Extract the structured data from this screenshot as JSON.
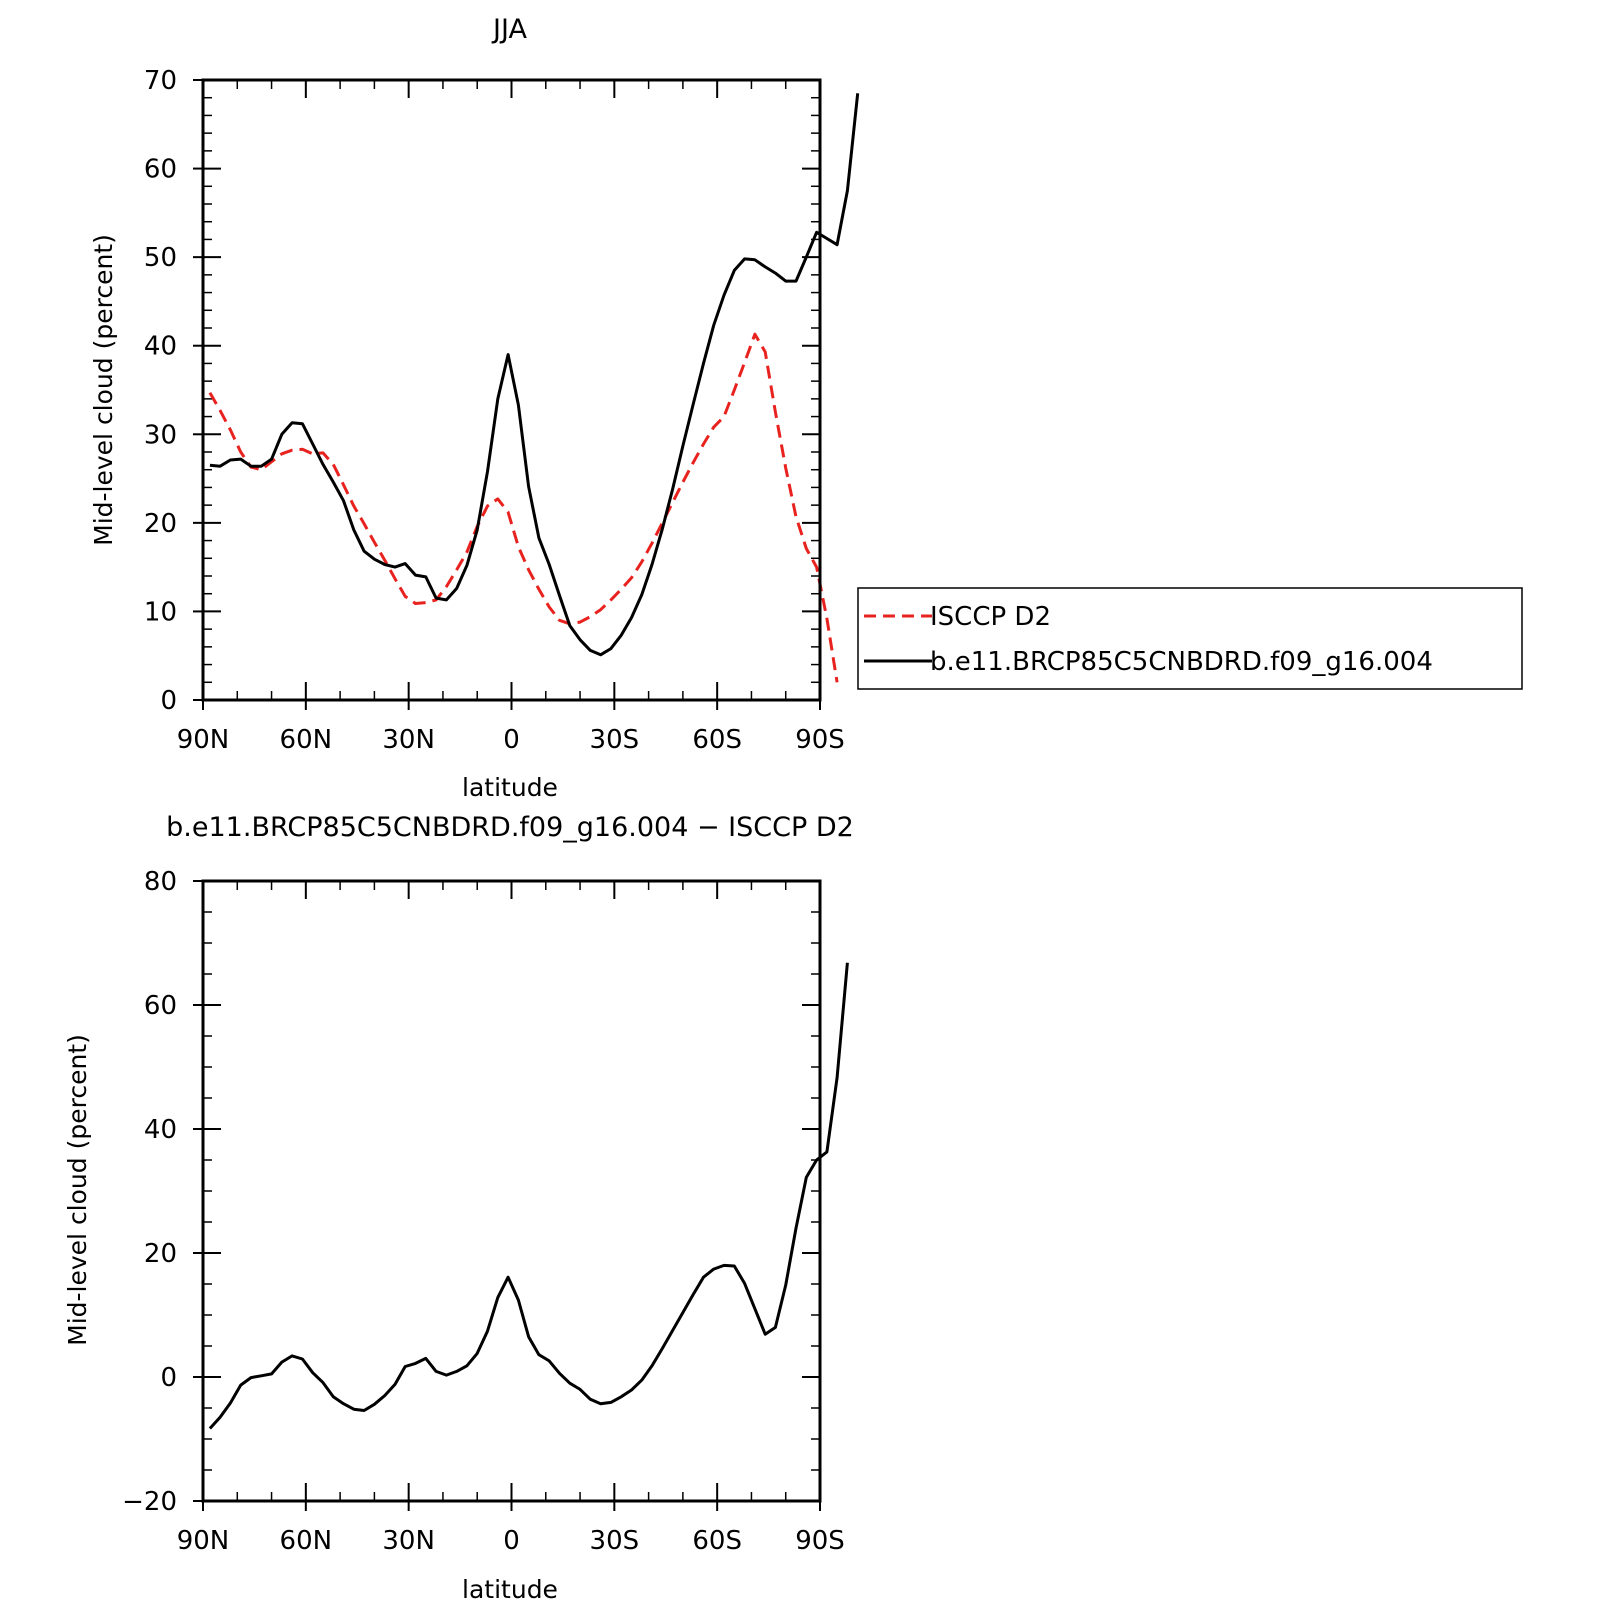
{
  "chart_data": [
    {
      "type": "line",
      "title": "JJA",
      "xlabel": "latitude",
      "ylabel": "Mid-level cloud (percent)",
      "xlim": [
        90,
        -90
      ],
      "ylim": [
        0,
        70
      ],
      "x_ticks": [
        90,
        60,
        30,
        0,
        -30,
        -60,
        -90
      ],
      "x_tick_labels": [
        "90N",
        "60N",
        "30N",
        "0",
        "30S",
        "60S",
        "90S"
      ],
      "y_ticks": [
        0,
        10,
        20,
        30,
        40,
        50,
        60,
        70
      ],
      "y_tick_labels": [
        "0",
        "10",
        "20",
        "30",
        "40",
        "50",
        "60",
        "70"
      ],
      "legend_position": "right",
      "series": [
        {
          "name": "ISCCP D2",
          "color": "#e8231f",
          "style": "dashed",
          "points": [
            [
              88,
              34.7
            ],
            [
              85,
              32.7
            ],
            [
              82,
              30.5
            ],
            [
              79,
              28.0
            ],
            [
              76,
              26.3
            ],
            [
              73,
              26.0
            ],
            [
              70,
              26.9
            ],
            [
              67,
              27.8
            ],
            [
              64,
              28.2
            ],
            [
              61,
              28.3
            ],
            [
              58,
              27.8
            ],
            [
              55,
              27.9
            ],
            [
              52,
              26.6
            ],
            [
              49,
              24.3
            ],
            [
              46,
              21.9
            ],
            [
              43,
              19.9
            ],
            [
              40,
              17.8
            ],
            [
              37,
              15.8
            ],
            [
              34,
              13.7
            ],
            [
              31,
              11.7
            ],
            [
              28,
              10.9
            ],
            [
              25,
              11.0
            ],
            [
              22,
              11.3
            ],
            [
              19,
              12.8
            ],
            [
              16,
              14.7
            ],
            [
              13,
              16.7
            ],
            [
              10,
              19.6
            ],
            [
              7,
              21.9
            ],
            [
              4,
              22.7
            ],
            [
              1,
              21.2
            ],
            [
              -2,
              17.3
            ],
            [
              -5,
              14.7
            ],
            [
              -8,
              12.5
            ],
            [
              -11,
              10.5
            ],
            [
              -14,
              9.0
            ],
            [
              -17,
              8.6
            ],
            [
              -20,
              8.8
            ],
            [
              -23,
              9.4
            ],
            [
              -26,
              10.2
            ],
            [
              -29,
              11.3
            ],
            [
              -32,
              12.5
            ],
            [
              -35,
              13.8
            ],
            [
              -38,
              15.6
            ],
            [
              -41,
              17.7
            ],
            [
              -44,
              20.0
            ],
            [
              -47,
              22.3
            ],
            [
              -50,
              24.6
            ],
            [
              -53,
              26.8
            ],
            [
              -56,
              28.9
            ],
            [
              -59,
              30.8
            ],
            [
              -62,
              32.0
            ],
            [
              -65,
              35.0
            ],
            [
              -68,
              38.1
            ],
            [
              -71,
              41.3
            ],
            [
              -74,
              39.3
            ],
            [
              -77,
              32.5
            ],
            [
              -80,
              26.2
            ],
            [
              -83,
              20.7
            ],
            [
              -86,
              17.1
            ],
            [
              -89,
              15.0
            ],
            [
              -92,
              9.2
            ],
            [
              -95,
              2.0
            ]
          ]
        },
        {
          "name": "b.e11.BRCP85C5CNBDRD.f09_g16.004",
          "color": "#000000",
          "style": "solid",
          "points": [
            [
              88,
              26.5
            ],
            [
              85,
              26.4
            ],
            [
              82,
              27.1
            ],
            [
              79,
              27.2
            ],
            [
              76,
              26.4
            ],
            [
              73,
              26.4
            ],
            [
              70,
              27.2
            ],
            [
              67,
              30.0
            ],
            [
              64,
              31.3
            ],
            [
              61,
              31.2
            ],
            [
              58,
              28.9
            ],
            [
              55,
              26.6
            ],
            [
              52,
              24.6
            ],
            [
              49,
              22.5
            ],
            [
              46,
              19.2
            ],
            [
              43,
              16.8
            ],
            [
              40,
              15.9
            ],
            [
              37,
              15.3
            ],
            [
              34,
              15.0
            ],
            [
              31,
              15.4
            ],
            [
              28,
              14.1
            ],
            [
              25,
              13.9
            ],
            [
              22,
              11.5
            ],
            [
              19,
              11.3
            ],
            [
              16,
              12.6
            ],
            [
              13,
              15.2
            ],
            [
              10,
              19.2
            ],
            [
              7,
              25.8
            ],
            [
              4,
              34.0
            ],
            [
              1,
              39.0
            ],
            [
              -2,
              33.3
            ],
            [
              -5,
              24.1
            ],
            [
              -8,
              18.3
            ],
            [
              -11,
              15.3
            ],
            [
              -14,
              11.8
            ],
            [
              -17,
              8.4
            ],
            [
              -20,
              6.8
            ],
            [
              -23,
              5.6
            ],
            [
              -26,
              5.1
            ],
            [
              -29,
              5.8
            ],
            [
              -32,
              7.3
            ],
            [
              -35,
              9.3
            ],
            [
              -38,
              11.9
            ],
            [
              -41,
              15.3
            ],
            [
              -44,
              19.3
            ],
            [
              -47,
              23.8
            ],
            [
              -50,
              28.7
            ],
            [
              -53,
              33.4
            ],
            [
              -56,
              38.0
            ],
            [
              -59,
              42.3
            ],
            [
              -62,
              45.7
            ],
            [
              -65,
              48.5
            ],
            [
              -68,
              49.8
            ],
            [
              -71,
              49.7
            ],
            [
              -74,
              48.9
            ],
            [
              -77,
              48.2
            ],
            [
              -80,
              47.3
            ],
            [
              -83,
              47.3
            ],
            [
              -86,
              50.0
            ],
            [
              -89,
              52.8
            ],
            [
              -92,
              52.1
            ],
            [
              -95,
              51.4
            ],
            [
              -98,
              57.5
            ],
            [
              -101,
              68.5
            ]
          ]
        }
      ]
    },
    {
      "type": "line",
      "title": "b.e11.BRCP85C5CNBDRD.f09_g16.004 − ISCCP D2",
      "xlabel": "latitude",
      "ylabel": "Mid-level cloud (percent)",
      "xlim": [
        90,
        -90
      ],
      "ylim": [
        -20,
        80
      ],
      "x_ticks": [
        90,
        60,
        30,
        0,
        -30,
        -60,
        -90
      ],
      "x_tick_labels": [
        "90N",
        "60N",
        "30N",
        "0",
        "30S",
        "60S",
        "90S"
      ],
      "y_ticks": [
        -20,
        0,
        20,
        40,
        60,
        80
      ],
      "y_tick_labels": [
        "−20",
        "0",
        "20",
        "40",
        "60",
        "80"
      ],
      "series": [
        {
          "color": "#000000",
          "style": "solid",
          "points": [
            [
              88,
              -8.3
            ],
            [
              85,
              -6.5
            ],
            [
              82,
              -4.2
            ],
            [
              79,
              -1.3
            ],
            [
              76,
              -0.1
            ],
            [
              73,
              0.2
            ],
            [
              70,
              0.5
            ],
            [
              67,
              2.4
            ],
            [
              64,
              3.4
            ],
            [
              61,
              2.9
            ],
            [
              58,
              0.7
            ],
            [
              55,
              -0.9
            ],
            [
              52,
              -3.2
            ],
            [
              49,
              -4.3
            ],
            [
              46,
              -5.2
            ],
            [
              43,
              -5.4
            ],
            [
              40,
              -4.4
            ],
            [
              37,
              -3.0
            ],
            [
              34,
              -1.2
            ],
            [
              31,
              1.7
            ],
            [
              28,
              2.2
            ],
            [
              25,
              3.0
            ],
            [
              22,
              0.9
            ],
            [
              19,
              0.3
            ],
            [
              16,
              0.9
            ],
            [
              13,
              1.8
            ],
            [
              10,
              3.8
            ],
            [
              7,
              7.4
            ],
            [
              4,
              12.8
            ],
            [
              1,
              16.1
            ],
            [
              -2,
              12.4
            ],
            [
              -5,
              6.5
            ],
            [
              -8,
              3.6
            ],
            [
              -11,
              2.6
            ],
            [
              -14,
              0.6
            ],
            [
              -17,
              -1.0
            ],
            [
              -20,
              -2.0
            ],
            [
              -23,
              -3.6
            ],
            [
              -26,
              -4.3
            ],
            [
              -29,
              -4.1
            ],
            [
              -32,
              -3.2
            ],
            [
              -35,
              -2.1
            ],
            [
              -38,
              -0.5
            ],
            [
              -41,
              1.8
            ],
            [
              -44,
              4.6
            ],
            [
              -47,
              7.5
            ],
            [
              -50,
              10.4
            ],
            [
              -53,
              13.3
            ],
            [
              -56,
              16.1
            ],
            [
              -59,
              17.4
            ],
            [
              -62,
              18.0
            ],
            [
              -65,
              17.9
            ],
            [
              -68,
              15.1
            ],
            [
              -71,
              11.0
            ],
            [
              -74,
              6.9
            ],
            [
              -77,
              8.0
            ],
            [
              -80,
              14.8
            ],
            [
              -83,
              24.0
            ],
            [
              -86,
              32.2
            ],
            [
              -89,
              35.0
            ],
            [
              -92,
              36.3
            ],
            [
              -95,
              48.3
            ],
            [
              -98,
              66.8
            ]
          ]
        }
      ]
    }
  ]
}
